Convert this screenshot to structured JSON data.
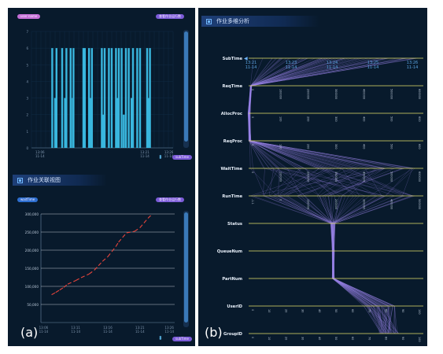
{
  "panel_a": {
    "caption": "(a)",
    "top_chart": {
      "left_pill": "user name",
      "right_pill": "查看作业运行数",
      "footer_pill": "subTime",
      "y_ticks": [
        "0",
        "1",
        "2",
        "3",
        "4",
        "5",
        "6",
        "7"
      ],
      "x_ticks": [
        [
          "13:06",
          "11-14"
        ],
        [
          "13:21",
          "11-14"
        ],
        [
          "13:26",
          "11-14"
        ]
      ],
      "bar_color": "#39b6de",
      "ymax": 7,
      "bars": [
        {
          "x": 0.14,
          "v": 6
        },
        {
          "x": 0.16,
          "v": 3
        },
        {
          "x": 0.17,
          "v": 6
        },
        {
          "x": 0.21,
          "v": 6
        },
        {
          "x": 0.23,
          "v": 3
        },
        {
          "x": 0.24,
          "v": 6
        },
        {
          "x": 0.27,
          "v": 6
        },
        {
          "x": 0.285,
          "v": 3
        },
        {
          "x": 0.29,
          "v": 6
        },
        {
          "x": 0.36,
          "v": 6
        },
        {
          "x": 0.37,
          "v": 6
        },
        {
          "x": 0.4,
          "v": 6
        },
        {
          "x": 0.41,
          "v": 3
        },
        {
          "x": 0.42,
          "v": 6
        },
        {
          "x": 0.49,
          "v": 6
        },
        {
          "x": 0.5,
          "v": 2
        },
        {
          "x": 0.51,
          "v": 6
        },
        {
          "x": 0.54,
          "v": 6
        },
        {
          "x": 0.56,
          "v": 6
        },
        {
          "x": 0.59,
          "v": 6
        },
        {
          "x": 0.6,
          "v": 3
        },
        {
          "x": 0.61,
          "v": 6
        },
        {
          "x": 0.63,
          "v": 6
        },
        {
          "x": 0.645,
          "v": 2
        },
        {
          "x": 0.66,
          "v": 6
        },
        {
          "x": 0.68,
          "v": 6
        },
        {
          "x": 0.7,
          "v": 3
        },
        {
          "x": 0.71,
          "v": 6
        },
        {
          "x": 0.74,
          "v": 6
        },
        {
          "x": 0.76,
          "v": 6
        },
        {
          "x": 0.81,
          "v": 6
        },
        {
          "x": 0.82,
          "v": 3
        },
        {
          "x": 0.83,
          "v": 6
        }
      ]
    },
    "section": {
      "title": "作业关联视图"
    },
    "bottom_chart": {
      "left_pill": "waitTime",
      "right_pill": "查看作业运行数",
      "footer_pill": "subTime",
      "y_ticks": [
        "50,000",
        "100,000",
        "150,000",
        "200,000",
        "250,000",
        "300,000"
      ],
      "y_values": [
        50000,
        100000,
        150000,
        200000,
        250000,
        300000
      ],
      "ymax": 300000,
      "x_ticks": [
        [
          "13:06",
          "11-14"
        ],
        [
          "13:11",
          "11-14"
        ],
        [
          "13:16",
          "11-14"
        ],
        [
          "13:21",
          "11-14"
        ],
        [
          "13:26",
          "11-14"
        ]
      ],
      "line_color": "#e8453c",
      "points": [
        [
          0.08,
          77000
        ],
        [
          0.11,
          83000
        ],
        [
          0.14,
          90000
        ],
        [
          0.17,
          97000
        ],
        [
          0.2,
          106000
        ],
        [
          0.26,
          116000
        ],
        [
          0.3,
          124000
        ],
        [
          0.36,
          134000
        ],
        [
          0.4,
          145000
        ],
        [
          0.43,
          157000
        ],
        [
          0.46,
          169000
        ],
        [
          0.5,
          182000
        ],
        [
          0.53,
          196000
        ],
        [
          0.56,
          210000
        ],
        [
          0.58,
          222000
        ],
        [
          0.61,
          235000
        ],
        [
          0.64,
          248000
        ],
        [
          0.7,
          252000
        ],
        [
          0.74,
          262000
        ],
        [
          0.77,
          275000
        ],
        [
          0.8,
          288000
        ],
        [
          0.83,
          299000
        ]
      ]
    }
  },
  "panel_b": {
    "caption": "(b)",
    "section": {
      "title": "作业多维分析"
    },
    "subtime_times": [
      [
        "13:21",
        "11-14"
      ],
      [
        "13:23",
        "11-14"
      ],
      [
        "13:24",
        "11-14"
      ],
      [
        "13:25",
        "11-14"
      ],
      [
        "13:26",
        "11-14"
      ]
    ],
    "axes": [
      {
        "label": "SubTime",
        "ticks": []
      },
      {
        "label": "ReqTime",
        "ticks": [
          "0",
          "100000",
          "200000",
          "300000",
          "400000",
          "500000",
          "600000"
        ]
      },
      {
        "label": "AllocProc",
        "ticks": [
          "0",
          "100",
          "200",
          "300",
          "400",
          "500",
          "600"
        ]
      },
      {
        "label": "ReqProc",
        "ticks": [
          "0",
          "100",
          "200",
          "300",
          "400",
          "500",
          "600"
        ]
      },
      {
        "label": "WaitTime",
        "ticks": [
          "0",
          "100000",
          "200000",
          "300000",
          "400000",
          "500000",
          "600000"
        ]
      },
      {
        "label": "RunTime",
        "ticks": [
          "-1.1",
          "0",
          "100000",
          "200000",
          "300000",
          "400000",
          "500000"
        ]
      },
      {
        "label": "Status",
        "ticks": []
      },
      {
        "label": "QueueNum",
        "ticks": []
      },
      {
        "label": "PartNum",
        "ticks": []
      },
      {
        "label": "UserID",
        "ticks": [
          "0",
          "10",
          "20",
          "30",
          "40",
          "50",
          "60",
          "70",
          "80",
          "90",
          "100"
        ]
      },
      {
        "label": "GroupID",
        "ticks": [
          "0",
          "10",
          "20",
          "30",
          "40",
          "50",
          "60",
          "70",
          "80",
          "90",
          "100"
        ]
      }
    ],
    "axis_color": "#e4e06a",
    "line_color": "#9b84e8"
  }
}
